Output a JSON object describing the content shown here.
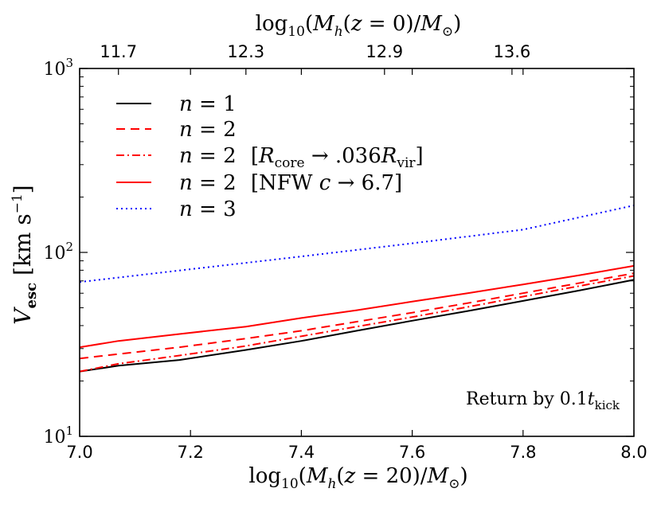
{
  "chart_data": {
    "type": "line",
    "xlabel": "log10(Mh(z = 20)/M⊙)",
    "xlabel_top": "log10(Mh(z = 0)/M⊙)",
    "ylabel": "Vesc [km s−1]",
    "xlim": [
      7.0,
      8.0
    ],
    "ylim": [
      10,
      1000
    ],
    "yscale": "log",
    "x_ticks": [
      "7.0",
      "7.2",
      "7.4",
      "7.6",
      "7.8",
      "8.0"
    ],
    "y_ticks": [
      {
        "value": 10,
        "base": "10",
        "exp": "1"
      },
      {
        "value": 100,
        "base": "10",
        "exp": "2"
      },
      {
        "value": 1000,
        "base": "10",
        "exp": "3"
      }
    ],
    "top_ticks": [
      {
        "x": 7.07,
        "label": "11.7"
      },
      {
        "x": 7.3,
        "label": "12.3"
      },
      {
        "x": 7.55,
        "label": "12.9"
      },
      {
        "x": 7.78,
        "label": "13.6"
      }
    ],
    "annotation": "Return by 0.1tkick",
    "series": [
      {
        "name": "n = 1",
        "color": "#000000",
        "dash": "solid",
        "x": [
          7.0,
          7.07,
          7.18,
          7.3,
          7.4,
          7.5,
          7.6,
          7.7,
          7.8,
          7.9,
          8.0
        ],
        "y": [
          22.5,
          24.2,
          26.0,
          29.5,
          33.0,
          37.5,
          42.5,
          48.0,
          54.5,
          62.0,
          71.0
        ]
      },
      {
        "name": "n = 2",
        "color": "#ff0000",
        "dash": "dashed",
        "x": [
          7.0,
          7.07,
          7.18,
          7.3,
          7.4,
          7.5,
          7.6,
          7.7,
          7.8,
          7.9,
          8.0
        ],
        "y": [
          26.5,
          28.0,
          30.5,
          34.0,
          37.5,
          42.0,
          47.0,
          53.0,
          60.0,
          68.0,
          77.0
        ]
      },
      {
        "name": "n = 2  [Rcore → .036Rvir]",
        "color": "#ff0000",
        "dash": "dashdot",
        "x": [
          7.0,
          7.07,
          7.18,
          7.3,
          7.4,
          7.5,
          7.6,
          7.7,
          7.8,
          7.9,
          8.0
        ],
        "y": [
          22.5,
          24.8,
          27.5,
          31.0,
          35.0,
          39.5,
          44.5,
          50.5,
          57.5,
          65.5,
          74.5
        ]
      },
      {
        "name": "n = 2  [NFW c → 6.7]",
        "color": "#ff0000",
        "dash": "solid",
        "x": [
          7.0,
          7.07,
          7.18,
          7.3,
          7.4,
          7.5,
          7.6,
          7.7,
          7.8,
          7.9,
          8.0
        ],
        "y": [
          30.5,
          33.0,
          36.0,
          39.5,
          44.0,
          48.5,
          54.0,
          60.0,
          67.0,
          75.0,
          84.5
        ]
      },
      {
        "name": "n = 3",
        "color": "#0000ff",
        "dash": "dotted",
        "x": [
          7.0,
          7.2,
          7.4,
          7.6,
          7.8,
          8.0
        ],
        "y": [
          69.0,
          81.0,
          95.0,
          112.0,
          133.0,
          180.0
        ]
      }
    ]
  }
}
